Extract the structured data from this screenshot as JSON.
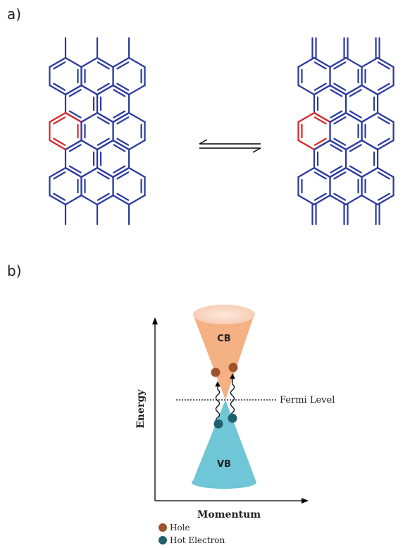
{
  "panels": {
    "a_label": "a)",
    "b_label": "b)"
  },
  "band_diagram": {
    "cb_label": "CB",
    "vb_label": "VB",
    "fermi_label": "Fermi Level",
    "y_axis_label": "Energy",
    "x_axis_label": "Momentum",
    "legend": [
      {
        "label": "Hole",
        "color": "#a0522d"
      },
      {
        "label": "Hot Electron",
        "color": "#1f5f6e"
      }
    ]
  },
  "colors": {
    "bond": "#2b3a9e",
    "highlight_ring": "#d8272a",
    "conduction_cone": "#f4b183",
    "valence_cone": "#6ec6d6",
    "hole": "#a0522d",
    "electron": "#1f5f6e"
  }
}
